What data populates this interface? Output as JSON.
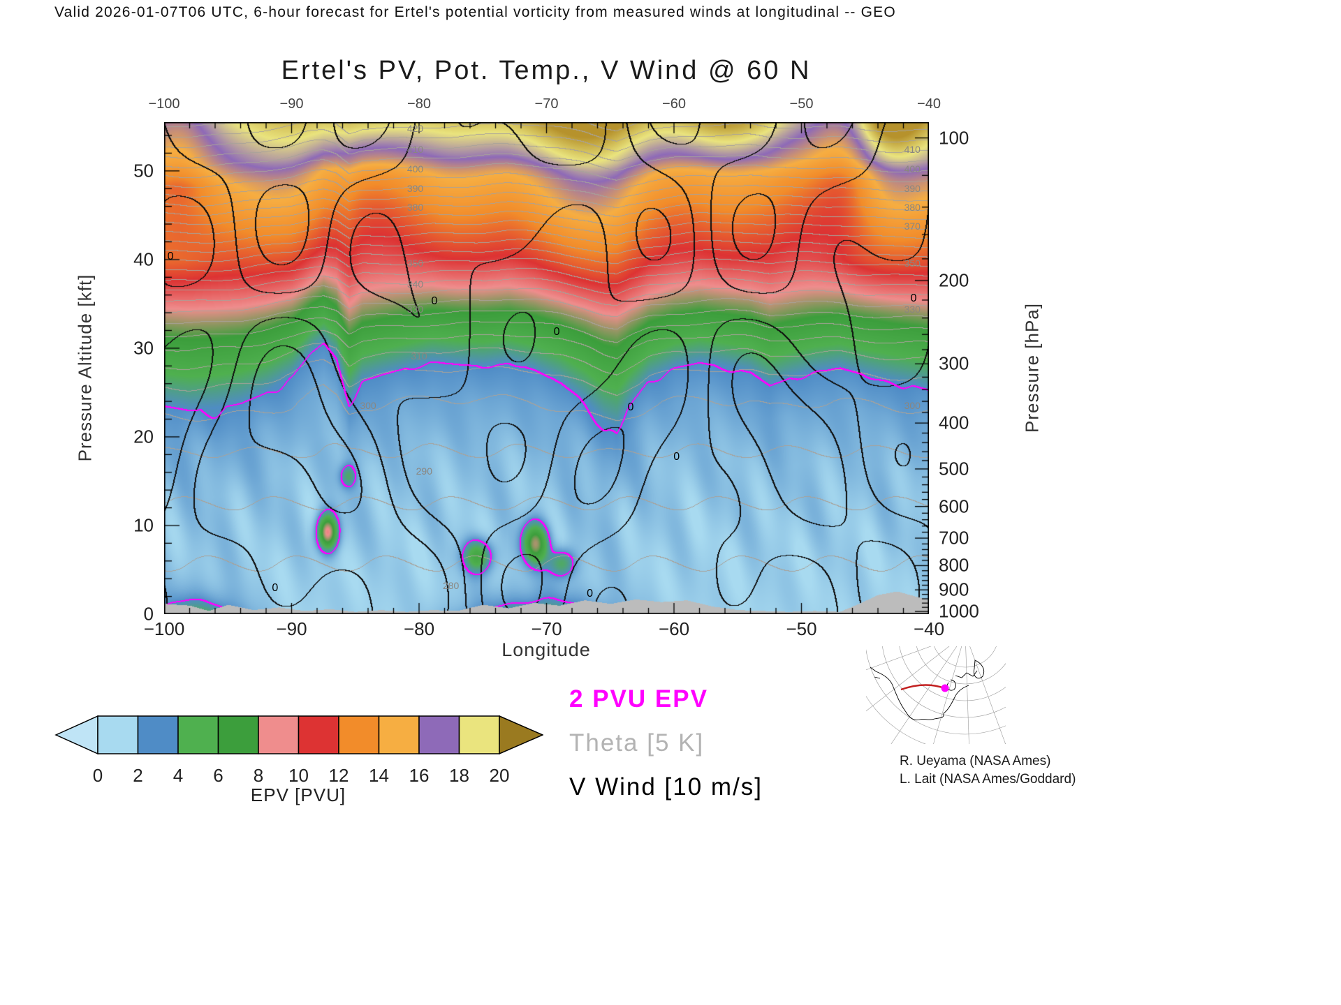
{
  "header": {
    "valid_text": "Valid 2026-01-07T06 UTC, 6-hour forecast for Ertel's potential vorticity from measured winds at longitudinal -- GEO"
  },
  "chart": {
    "title": "Ertel's PV, Pot. Temp., V Wind @ 60 N"
  },
  "axes": {
    "x": {
      "label": "Longitude",
      "tick_labels": [
        "−100",
        "−90",
        "−80",
        "−70",
        "−60",
        "−50",
        "−40"
      ],
      "tick_values": [
        -100,
        -90,
        -80,
        -70,
        -60,
        -50,
        -40
      ]
    },
    "y_left": {
      "label": "Pressure Altitude [kft]",
      "tick_labels": [
        "0",
        "10",
        "20",
        "30",
        "40",
        "50"
      ],
      "tick_values": [
        0,
        10,
        20,
        30,
        40,
        50
      ]
    },
    "y_right": {
      "label": "Pressure [hPa]",
      "tick_labels": [
        "100",
        "200",
        "300",
        "400",
        "500",
        "600",
        "700",
        "800",
        "900",
        "1000"
      ],
      "tick_values": [
        100,
        200,
        300,
        400,
        500,
        600,
        700,
        800,
        900,
        1000
      ]
    }
  },
  "colorbar": {
    "label": "EPV [PVU]",
    "tick_labels": [
      "0",
      "2",
      "4",
      "6",
      "8",
      "10",
      "12",
      "14",
      "16",
      "18",
      "20"
    ],
    "segment_colors": [
      "#a8daf0",
      "#4f8cc6",
      "#4fb04f",
      "#3c9e3c",
      "#ef8d8d",
      "#dd3333",
      "#f28c2a",
      "#f6ae42",
      "#8e6ab8",
      "#eae47e"
    ],
    "under_color": "#bfe4f6",
    "over_color": "#9a7a20"
  },
  "legend": {
    "entries": [
      {
        "label": "2 PVU EPV",
        "color": "#ff00ff",
        "weight": 700
      },
      {
        "label": "Theta [5 K]",
        "color": "#b3b3b3",
        "weight": 400
      },
      {
        "label": "V Wind [10 m/s]",
        "color": "#000000",
        "weight": 500
      }
    ]
  },
  "credits": {
    "line1": "R. Ueyama (NASA Ames)",
    "line2": "L. Lait (NASA Ames/Goddard)"
  },
  "chart_data": {
    "type": "heatmap",
    "title": "Ertel's PV, Pot. Temp., V Wind @ 60 N",
    "fill_field": "EPV [PVU]",
    "x": {
      "label": "Longitude",
      "min": -100,
      "max": -40,
      "ticks": [
        -100,
        -90,
        -80,
        -70,
        -60,
        -50,
        -40
      ]
    },
    "y": {
      "label": "Pressure Altitude [kft]",
      "min": 0,
      "max_kft": 55.5,
      "ticks": [
        0,
        10,
        20,
        30,
        40,
        50
      ]
    },
    "pressure_axis": {
      "label": "Pressure [hPa]",
      "ticks": [
        100,
        200,
        300,
        400,
        500,
        600,
        700,
        800,
        900,
        1000
      ],
      "scale": "log",
      "p0_hpa": 1013,
      "scale_height_kft": 23.2
    },
    "levels": [
      0,
      2,
      4,
      6,
      8,
      10,
      12,
      14,
      16,
      18,
      20
    ],
    "colormap_stops": [
      {
        "v": 0,
        "c": "#a8daf0"
      },
      {
        "v": 2,
        "c": "#4f8cc6"
      },
      {
        "v": 4,
        "c": "#4fb04f"
      },
      {
        "v": 6,
        "c": "#3c9e3c"
      },
      {
        "v": 8,
        "c": "#ef8d8d"
      },
      {
        "v": 10,
        "c": "#dd3333"
      },
      {
        "v": 12,
        "c": "#f28c2a"
      },
      {
        "v": 14,
        "c": "#f6ae42"
      },
      {
        "v": 16,
        "c": "#8e6ab8"
      },
      {
        "v": 18,
        "c": "#eae47e"
      },
      {
        "v": 20,
        "c": "#b6922c"
      }
    ],
    "overlays": [
      {
        "name": "2 PVU EPV contour",
        "color": "#ff00ff"
      },
      {
        "name": "Theta contours every 5 K",
        "color": "#b3b3b3"
      },
      {
        "name": "V wind contours every 10 m/s",
        "color": "#000000"
      }
    ],
    "tropopause_2pvu": {
      "lon": [
        -100,
        -98,
        -96,
        -94,
        -92,
        -90,
        -88.5,
        -87.5,
        -86.5,
        -85.5,
        -84.5,
        -83,
        -81,
        -79,
        -77,
        -75,
        -73,
        -71,
        -69,
        -67,
        -65.5,
        -64.5,
        -63.5,
        -62,
        -60,
        -58,
        -56,
        -54,
        -52.5,
        -51,
        -49,
        -47,
        -45,
        -43,
        -41,
        -40
      ],
      "alt_kft": [
        23.5,
        23.0,
        23.2,
        23.8,
        25.0,
        26.8,
        29.5,
        30.6,
        29.0,
        23.8,
        26.3,
        27.0,
        27.8,
        28.5,
        28.2,
        28.0,
        28.4,
        27.6,
        26.2,
        24.0,
        21.6,
        20.8,
        23.6,
        26.4,
        27.8,
        28.4,
        27.9,
        27.3,
        25.8,
        26.6,
        27.4,
        27.8,
        27.0,
        26.3,
        25.7,
        25.3
      ]
    },
    "terrain": {
      "lon": [
        -100,
        -98,
        -96.5,
        -95,
        -93,
        -91,
        -89,
        -87,
        -85,
        -83,
        -81,
        -79,
        -77,
        -75,
        -73,
        -71,
        -69,
        -67,
        -65,
        -63,
        -61,
        -59,
        -57,
        -55,
        -53,
        -51,
        -49,
        -47,
        -45.5,
        -44,
        -42.5,
        -41,
        -40
      ],
      "alt_kft": [
        1.2,
        1.0,
        0.4,
        1.1,
        0.5,
        0.8,
        0.4,
        0.6,
        0.3,
        0.5,
        0.3,
        0.5,
        0.4,
        1.1,
        0.7,
        1.3,
        1.0,
        1.6,
        1.2,
        1.7,
        1.4,
        1.6,
        0.9,
        0.5,
        0.4,
        0.3,
        0.4,
        0.3,
        1.2,
        2.2,
        2.6,
        2.0,
        1.6
      ]
    },
    "epv_profile": {
      "d_kft": [
        -40,
        -20,
        -10,
        -4,
        0,
        3,
        6.5,
        9.5,
        13,
        18,
        22.5,
        25,
        27.5,
        31,
        40
      ],
      "epv": [
        0.1,
        0.35,
        0.75,
        1.35,
        2,
        4,
        6,
        8,
        10,
        12,
        14,
        16,
        17.2,
        18.8,
        24
      ]
    },
    "theta_profile": {
      "alt_kft": [
        0,
        5,
        10,
        15,
        20,
        24,
        27,
        30,
        33,
        36,
        40,
        44,
        48,
        52,
        55.5
      ],
      "theta_k": [
        281,
        284.5,
        288,
        292,
        296.5,
        300.5,
        305,
        312,
        322,
        334,
        352,
        371,
        390,
        408,
        423
      ]
    },
    "low_level_pv_maxima": [
      {
        "lon": -87.2,
        "alt_kft": 9.3,
        "amp": 8.0,
        "sl": 0.55,
        "sa": 1.4
      },
      {
        "lon": -75.4,
        "alt_kft": 6.6,
        "amp": 4.6,
        "sl": 0.8,
        "sa": 1.3
      },
      {
        "lon": -70.9,
        "alt_kft": 8.0,
        "amp": 6.5,
        "sl": 0.7,
        "sa": 1.6
      },
      {
        "lon": -68.8,
        "alt_kft": 5.8,
        "amp": 3.4,
        "sl": 0.7,
        "sa": 1.1
      },
      {
        "lon": -85.6,
        "alt_kft": 15.6,
        "amp": 2.6,
        "sl": 0.45,
        "sa": 0.9
      }
    ],
    "theta_labels": [
      {
        "v": "420",
        "lon": -80.3,
        "alt_kft": 54.8
      },
      {
        "v": "410",
        "lon": -80.3,
        "alt_kft": 52.4
      },
      {
        "v": "400",
        "lon": -80.3,
        "alt_kft": 50.2
      },
      {
        "v": "390",
        "lon": -80.3,
        "alt_kft": 48.0
      },
      {
        "v": "380",
        "lon": -80.3,
        "alt_kft": 45.9
      },
      {
        "v": "350",
        "lon": -80.3,
        "alt_kft": 39.6
      },
      {
        "v": "340",
        "lon": -80.3,
        "alt_kft": 37.2
      },
      {
        "v": "330",
        "lon": -80.3,
        "alt_kft": 34.4
      },
      {
        "v": "310",
        "lon": -80.0,
        "alt_kft": 29.1
      },
      {
        "v": "300",
        "lon": -84.0,
        "alt_kft": 23.5
      },
      {
        "v": "290",
        "lon": -79.6,
        "alt_kft": 16.1
      },
      {
        "v": "280",
        "lon": -77.5,
        "alt_kft": 3.2
      },
      {
        "v": "410",
        "lon": -41.3,
        "alt_kft": 52.4
      },
      {
        "v": "400",
        "lon": -41.3,
        "alt_kft": 50.2
      },
      {
        "v": "390",
        "lon": -41.3,
        "alt_kft": 48.0
      },
      {
        "v": "380",
        "lon": -41.3,
        "alt_kft": 45.9
      },
      {
        "v": "370",
        "lon": -41.3,
        "alt_kft": 43.8
      },
      {
        "v": "350",
        "lon": -41.3,
        "alt_kft": 39.6
      },
      {
        "v": "330",
        "lon": -41.3,
        "alt_kft": 34.4
      },
      {
        "v": "300",
        "lon": -41.3,
        "alt_kft": 23.5
      }
    ],
    "wind_zero_labels": [
      {
        "lon": -99.5,
        "alt_kft": 40.3
      },
      {
        "lon": -78.8,
        "alt_kft": 35.3
      },
      {
        "lon": -69.2,
        "alt_kft": 31.8
      },
      {
        "lon": -59.8,
        "alt_kft": 17.7
      },
      {
        "lon": -41.2,
        "alt_kft": 35.6
      },
      {
        "lon": -66.6,
        "alt_kft": 2.3
      },
      {
        "lon": -91.3,
        "alt_kft": 2.9
      },
      {
        "lon": -63.4,
        "alt_kft": 23.3
      }
    ]
  }
}
